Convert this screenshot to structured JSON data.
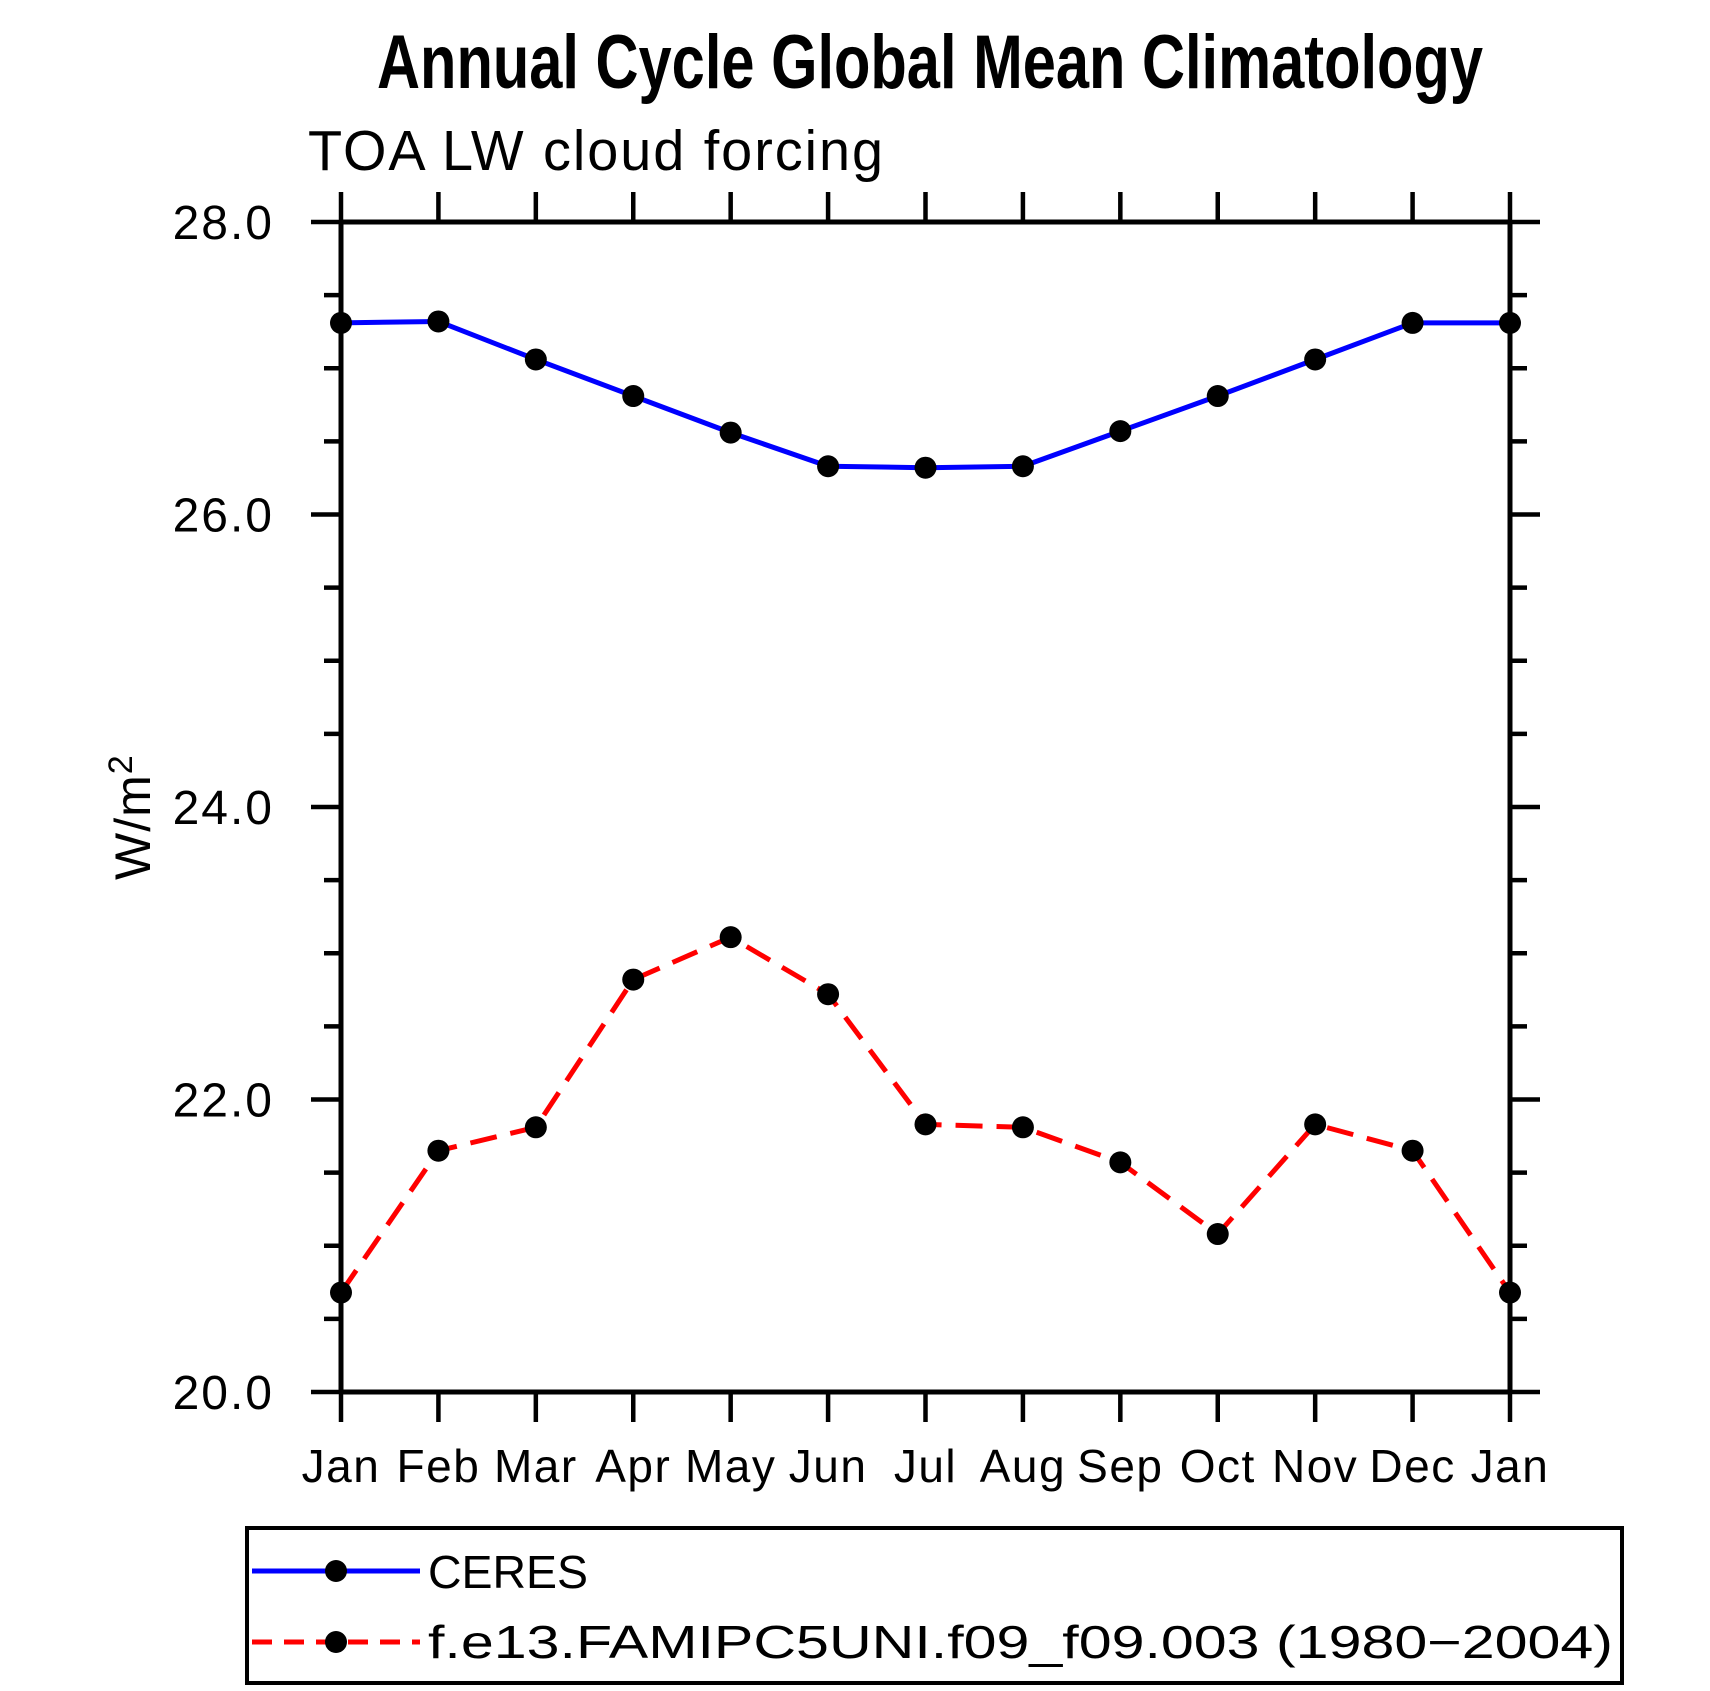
{
  "title": "Annual Cycle Global Mean Climatology",
  "subtitle": "TOA LW cloud forcing",
  "y_axis_title": {
    "base": "W/m",
    "exponent": "2"
  },
  "legend": {
    "entries": [
      {
        "label": "CERES",
        "color": "#0000ff",
        "line_style": "solid",
        "marker": "filled-circle"
      },
      {
        "label": "f.e13.FAMIPC5UNI.f09_f09.003 (1980−2004)",
        "color": "#ff0000",
        "line_style": "dashed",
        "marker": "filled-circle"
      }
    ]
  },
  "chart_data": {
    "type": "line",
    "title": "Annual Cycle Global Mean Climatology",
    "subtitle": "TOA LW cloud forcing",
    "xlabel": "",
    "ylabel": "W/m2",
    "categories": [
      "Jan",
      "Feb",
      "Mar",
      "Apr",
      "May",
      "Jun",
      "Jul",
      "Aug",
      "Sep",
      "Oct",
      "Nov",
      "Dec",
      "Jan"
    ],
    "series": [
      {
        "name": "CERES",
        "color": "#0000ff",
        "line_style": "solid",
        "marker": "filled-circle",
        "marker_color": "#000000",
        "values": [
          27.31,
          27.32,
          27.06,
          26.81,
          26.56,
          26.33,
          26.32,
          26.33,
          26.57,
          26.81,
          27.06,
          27.31,
          27.31
        ]
      },
      {
        "name": "f.e13.FAMIPC5UNI.f09_f09.003 (1980−2004)",
        "color": "#ff0000",
        "line_style": "dashed",
        "marker": "filled-circle",
        "marker_color": "#000000",
        "values": [
          20.68,
          21.65,
          21.81,
          22.82,
          23.11,
          22.72,
          21.83,
          21.81,
          21.57,
          21.08,
          21.83,
          21.65,
          20.68
        ]
      }
    ],
    "ylim": [
      20.0,
      28.0
    ],
    "y_major_ticks": [
      20.0,
      22.0,
      24.0,
      26.0,
      28.0
    ],
    "y_tick_labels": [
      "20.0",
      "22.0",
      "24.0",
      "26.0",
      "28.0"
    ],
    "y_minor_step": 0.5,
    "grid": false,
    "tick_direction": "out",
    "legend_position": "below-left"
  }
}
